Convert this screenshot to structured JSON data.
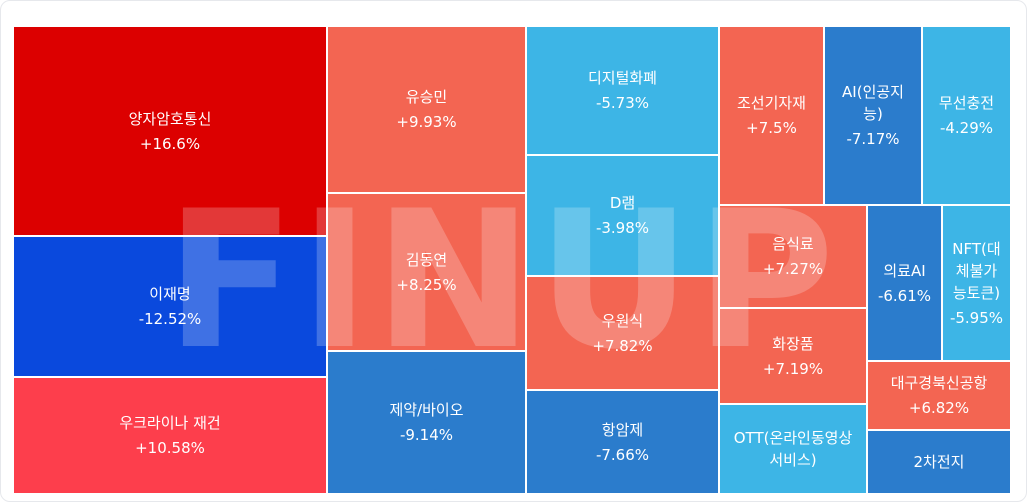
{
  "watermark": "FINUP",
  "chart_data": {
    "type": "treemap",
    "colors": {
      "strong_up": "#dc0000",
      "up_bright": "#fd3e4c",
      "up": "#f36552",
      "strong_down": "#0a49dd",
      "down": "#2b7ccc",
      "down_light": "#3db5e6"
    },
    "cells": [
      {
        "name": "양자암호통신",
        "change": "+16.6%",
        "color": "#dc0000"
      },
      {
        "name": "이재명",
        "change": "-12.52%",
        "color": "#0a49dd"
      },
      {
        "name": "우크라이나 재건",
        "change": "+10.58%",
        "color": "#fd3e4c"
      },
      {
        "name": "유승민",
        "change": "+9.93%",
        "color": "#f36552"
      },
      {
        "name": "김동연",
        "change": "+8.25%",
        "color": "#f36552"
      },
      {
        "name": "제약/바이오",
        "change": "-9.14%",
        "color": "#2b7ccc"
      },
      {
        "name": "디지털화폐",
        "change": "-5.73%",
        "color": "#3db5e6"
      },
      {
        "name": "D램",
        "change": "-3.98%",
        "color": "#3db5e6"
      },
      {
        "name": "우원식",
        "change": "+7.82%",
        "color": "#f36552"
      },
      {
        "name": "항암제",
        "change": "-7.66%",
        "color": "#2b7ccc"
      },
      {
        "name": "조선기자재",
        "change": "+7.5%",
        "color": "#f36552"
      },
      {
        "name": "AI(인공지\n능)",
        "change": "-7.17%",
        "color": "#2b7ccc"
      },
      {
        "name": "무선충전",
        "change": "-4.29%",
        "color": "#3db5e6"
      },
      {
        "name": "음식료",
        "change": "+7.27%",
        "color": "#f36552"
      },
      {
        "name": "의료AI",
        "change": "-6.61%",
        "color": "#2b7ccc"
      },
      {
        "name": "NFT(대\n체불가\n능토큰)",
        "change": "-5.95%",
        "color": "#3db5e6"
      },
      {
        "name": "화장품",
        "change": "+7.19%",
        "color": "#f36552"
      },
      {
        "name": "대구경북신공항",
        "change": "+6.82%",
        "color": "#f36552"
      },
      {
        "name": "OTT(온라인동영상\n서비스)",
        "change": "",
        "color": "#3db5e6"
      },
      {
        "name": "2차전지",
        "change": "",
        "color": "#2b7ccc"
      }
    ]
  }
}
